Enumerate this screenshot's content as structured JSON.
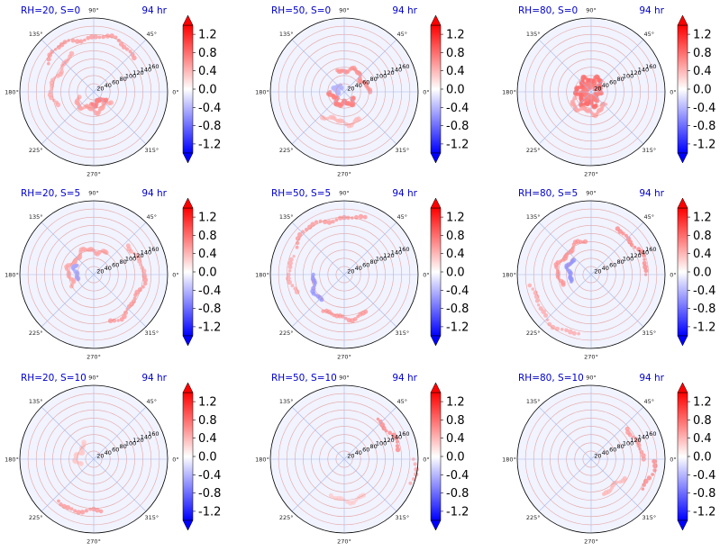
{
  "chart_data": {
    "type": "polar-heatmap",
    "figure": "Polar filled-contour anomaly fields, 3x3 grid (RH x S) at 94 hr",
    "colormap": "bwr",
    "colorbar": {
      "ticks": [
        "1.2",
        "0.8",
        "0.4",
        "0.0",
        "-0.4",
        "-0.8",
        "-1.2"
      ],
      "tick_values": [
        1.2,
        0.8,
        0.4,
        0.0,
        -0.4,
        -0.8,
        -1.2
      ],
      "vmin": -1.4,
      "vmax": 1.4,
      "extend": "both"
    },
    "angle_ticks": [
      "0°",
      "45°",
      "90°",
      "135°",
      "180°",
      "225°",
      "270°",
      "315°"
    ],
    "angle_values_deg": [
      0,
      45,
      90,
      135,
      180,
      225,
      270,
      315
    ],
    "radial_ticks": [
      "20",
      "40",
      "60",
      "80",
      "100",
      "120",
      "140",
      "160"
    ],
    "radial_values": [
      20,
      40,
      60,
      80,
      100,
      120,
      140,
      160
    ],
    "rmax": 180,
    "radial_label_angle_deg": 22.5,
    "panels": [
      {
        "title_left": "RH=20, S=0",
        "title_right": "94 hr",
        "rh": 20,
        "s": 0,
        "features": [
          {
            "kind": "ring",
            "r": 135,
            "a_start": 40,
            "a_end": 150,
            "value": 0.6
          },
          {
            "kind": "ring",
            "r": 100,
            "a_start": 120,
            "a_end": 200,
            "value": 0.5
          },
          {
            "kind": "ring",
            "r": 45,
            "a_start": 200,
            "a_end": 330,
            "value": 0.5
          },
          {
            "kind": "ring",
            "r": 28,
            "a_start": 260,
            "a_end": 330,
            "value": 0.7
          }
        ]
      },
      {
        "title_left": "RH=50, S=0",
        "title_right": "94 hr",
        "rh": 50,
        "s": 0,
        "features": [
          {
            "kind": "ring",
            "r": 30,
            "a_start": 180,
            "a_end": 330,
            "value": 0.7
          },
          {
            "kind": "ring",
            "r": 55,
            "a_start": 0,
            "a_end": 110,
            "value": 0.6
          },
          {
            "kind": "ring",
            "r": 75,
            "a_start": 230,
            "a_end": 300,
            "value": 0.4
          },
          {
            "kind": "ring",
            "r": 20,
            "a_start": 120,
            "a_end": 200,
            "value": -0.4
          }
        ]
      },
      {
        "title_left": "RH=80, S=0",
        "title_right": "94 hr",
        "rh": 80,
        "s": 0,
        "features": [
          {
            "kind": "ring",
            "r": 18,
            "a_start": 0,
            "a_end": 360,
            "value": 0.7
          },
          {
            "kind": "ring",
            "r": 32,
            "a_start": 30,
            "a_end": 290,
            "value": 0.8
          },
          {
            "kind": "ring",
            "r": 50,
            "a_start": 200,
            "a_end": 320,
            "value": 0.5
          }
        ]
      },
      {
        "title_left": "RH=20, S=5",
        "title_right": "94 hr",
        "rh": 20,
        "s": 5,
        "features": [
          {
            "kind": "ring",
            "r": 120,
            "a_start": 290,
            "a_end": 360,
            "value": 0.6
          },
          {
            "kind": "ring",
            "r": 115,
            "a_start": 0,
            "a_end": 40,
            "value": 0.5
          },
          {
            "kind": "ring",
            "r": 60,
            "a_start": 60,
            "a_end": 210,
            "value": 0.5
          },
          {
            "kind": "ring",
            "r": 45,
            "a_start": 150,
            "a_end": 200,
            "value": -0.5
          }
        ]
      },
      {
        "title_left": "RH=50, S=5",
        "title_right": "94 hr",
        "rh": 50,
        "s": 5,
        "features": [
          {
            "kind": "ring",
            "r": 140,
            "a_start": 70,
            "a_end": 150,
            "value": 0.6
          },
          {
            "kind": "ring",
            "r": 130,
            "a_start": 160,
            "a_end": 200,
            "value": 0.5
          },
          {
            "kind": "ring",
            "r": 105,
            "a_start": 240,
            "a_end": 300,
            "value": 0.6
          },
          {
            "kind": "ring",
            "r": 80,
            "a_start": 180,
            "a_end": 230,
            "value": -0.6
          }
        ]
      },
      {
        "title_left": "RH=80, S=5",
        "title_right": "94 hr",
        "rh": 80,
        "s": 5,
        "features": [
          {
            "kind": "ring",
            "r": 130,
            "a_start": 0,
            "a_end": 60,
            "value": 0.7
          },
          {
            "kind": "ring",
            "r": 150,
            "a_start": 190,
            "a_end": 260,
            "value": 0.5
          },
          {
            "kind": "ring",
            "r": 80,
            "a_start": 100,
            "a_end": 200,
            "value": 0.6
          },
          {
            "kind": "ring",
            "r": 55,
            "a_start": 140,
            "a_end": 200,
            "value": -0.6
          }
        ]
      },
      {
        "title_left": "RH=20, S=10",
        "title_right": "94 hr",
        "rh": 20,
        "s": 10,
        "features": [
          {
            "kind": "ring",
            "r": 130,
            "a_start": 230,
            "a_end": 280,
            "value": 0.6
          },
          {
            "kind": "ring",
            "r": 40,
            "a_start": 120,
            "a_end": 200,
            "value": 0.3
          }
        ]
      },
      {
        "title_left": "RH=50, S=10",
        "title_right": "94 hr",
        "rh": 50,
        "s": 10,
        "features": [
          {
            "kind": "ring",
            "r": 130,
            "a_start": 10,
            "a_end": 50,
            "value": 0.7
          },
          {
            "kind": "ring",
            "r": 170,
            "a_start": 340,
            "a_end": 360,
            "value": 0.5
          },
          {
            "kind": "ring",
            "r": 100,
            "a_start": 250,
            "a_end": 300,
            "value": 0.3
          }
        ]
      },
      {
        "title_left": "RH=80, S=10",
        "title_right": "94 hr",
        "rh": 80,
        "s": 10,
        "features": [
          {
            "kind": "ring",
            "r": 150,
            "a_start": 330,
            "a_end": 360,
            "value": 0.7
          },
          {
            "kind": "ring",
            "r": 120,
            "a_start": 0,
            "a_end": 40,
            "value": 0.6
          },
          {
            "kind": "ring",
            "r": 90,
            "a_start": 290,
            "a_end": 330,
            "value": 0.4
          }
        ]
      }
    ]
  },
  "colors": {
    "title": "#0000cc",
    "ring_grid": "#e08a80",
    "spoke_grid": "#a9b8e6",
    "background_wash": "#f1f3ff",
    "positive": "#ff0000",
    "negative": "#0000ff",
    "axis": "#000000"
  }
}
